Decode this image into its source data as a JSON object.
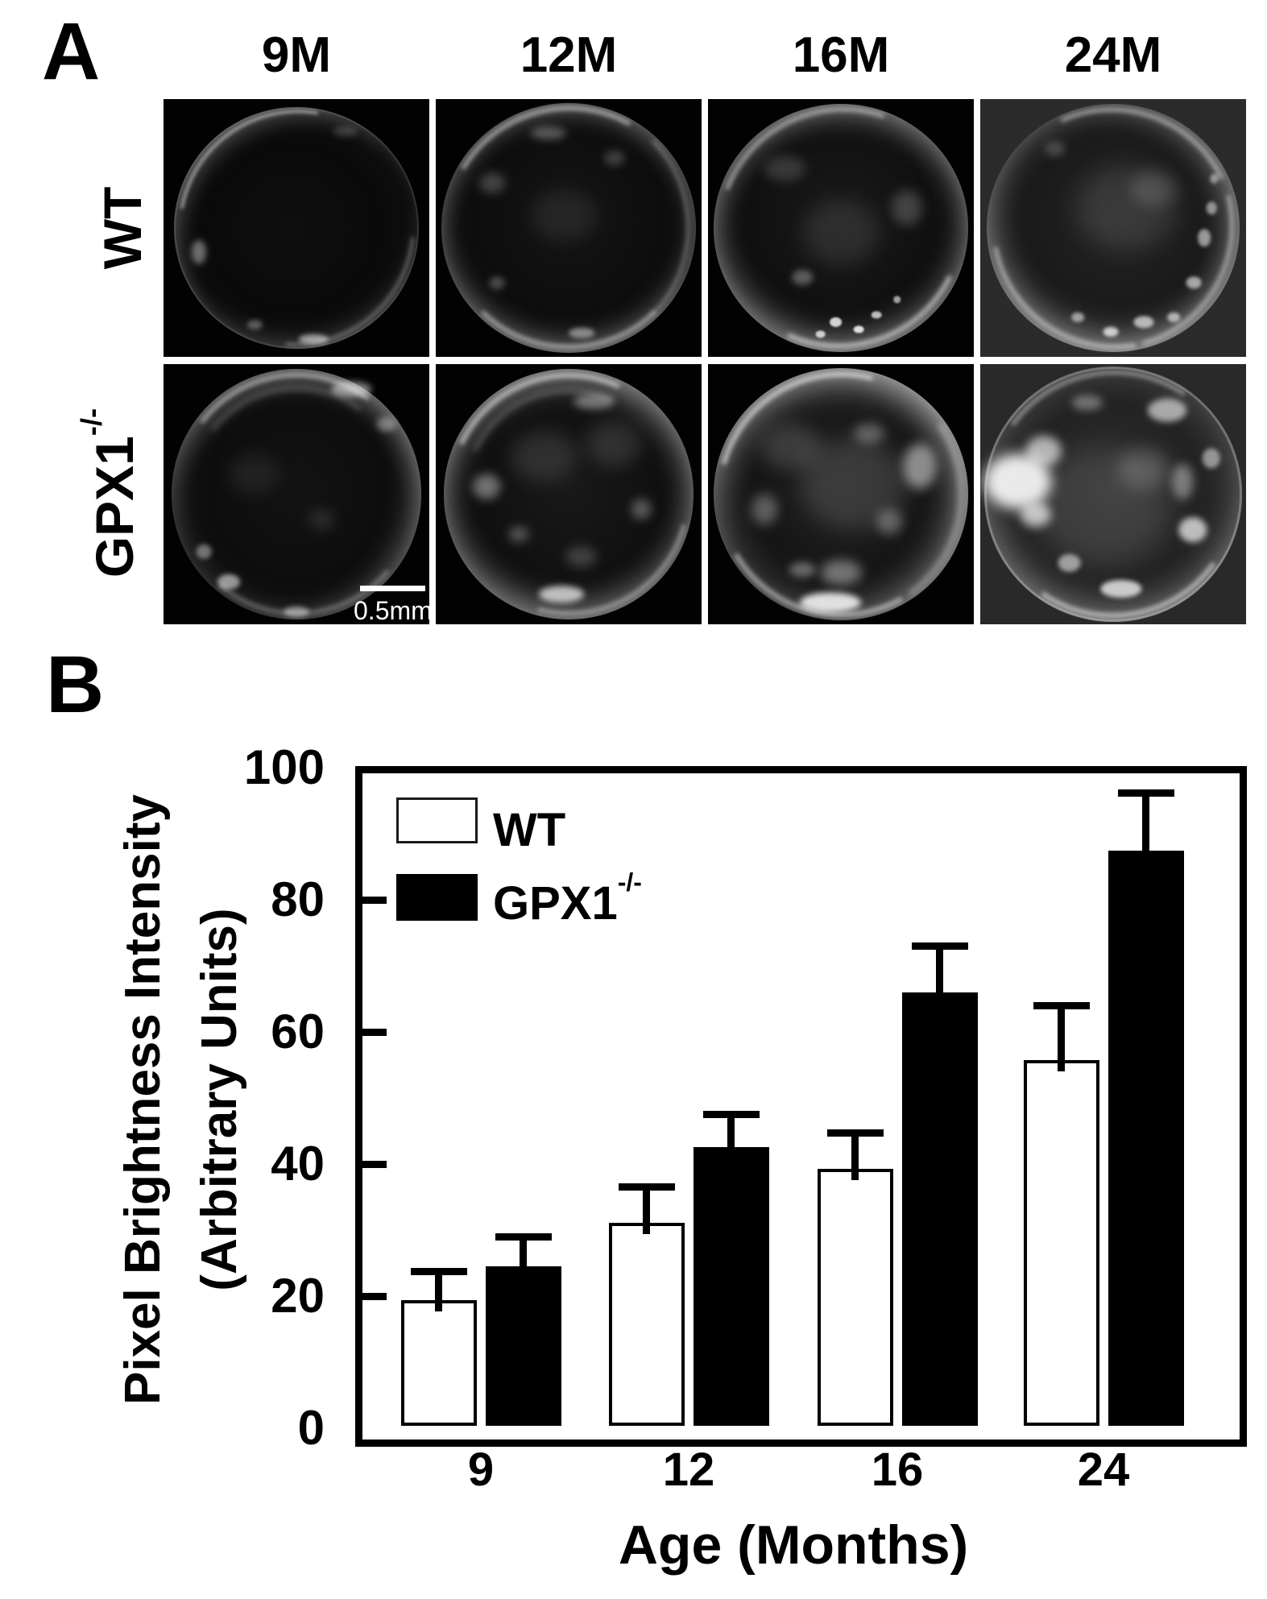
{
  "figure": {
    "type": "two-panel scientific figure",
    "background": "#ffffff"
  },
  "panel_a": {
    "label": "A",
    "col_headers": [
      "9M",
      "12M",
      "16M",
      "24M"
    ],
    "row_labels": [
      {
        "base": "WT",
        "sup": ""
      },
      {
        "base": "GPX1",
        "sup": "-/-"
      }
    ],
    "scale_bar_label": "0.5mm",
    "images": [
      {
        "key": "wt9",
        "genotype": "WT",
        "age": "9M"
      },
      {
        "key": "wt12",
        "genotype": "WT",
        "age": "12M"
      },
      {
        "key": "wt16",
        "genotype": "WT",
        "age": "16M"
      },
      {
        "key": "wt24",
        "genotype": "WT",
        "age": "24M"
      },
      {
        "key": "g9",
        "genotype": "GPX1-/-",
        "age": "9M"
      },
      {
        "key": "g12",
        "genotype": "GPX1-/-",
        "age": "12M"
      },
      {
        "key": "g16",
        "genotype": "GPX1-/-",
        "age": "16M"
      },
      {
        "key": "g24",
        "genotype": "GPX1-/-",
        "age": "24M"
      }
    ]
  },
  "panel_b": {
    "label": "B"
  },
  "chart_data": {
    "type": "bar",
    "title": "",
    "xlabel": "Age (Months)",
    "ylabel_line1": "Pixel Brightness Intensity",
    "ylabel_line2": "(Arbitrary Units)",
    "categories": [
      "9",
      "12",
      "16",
      "24"
    ],
    "series": [
      {
        "name": "WT",
        "name_sup": "",
        "fill": "#ffffff",
        "values": [
          19.4,
          31.1,
          39.3,
          55.7
        ],
        "errors": [
          4.3,
          5.4,
          5.4,
          8.3
        ]
      },
      {
        "name": "GPX1",
        "name_sup": "-/-",
        "fill": "#000000",
        "values": [
          24.5,
          42.6,
          66.0,
          87.4
        ],
        "errors": [
          4.5,
          4.9,
          7.0,
          8.8
        ]
      }
    ],
    "ylim": [
      0,
      100
    ],
    "yticks": [
      0,
      20,
      40,
      60,
      80,
      100
    ],
    "error_bars": "plus-direction with caps",
    "legend_position": "top-left inside plot",
    "grid": false
  },
  "colors": {
    "photo_bg": "#020202",
    "photo_bg_24m_wt": "#2b2b2b",
    "photo_bg_24m_gpx1": "#292929",
    "bar_wt_fill": "#ffffff",
    "bar_gpx1_fill": "#000000",
    "axis_color": "#000000",
    "text_color": "#000000"
  }
}
